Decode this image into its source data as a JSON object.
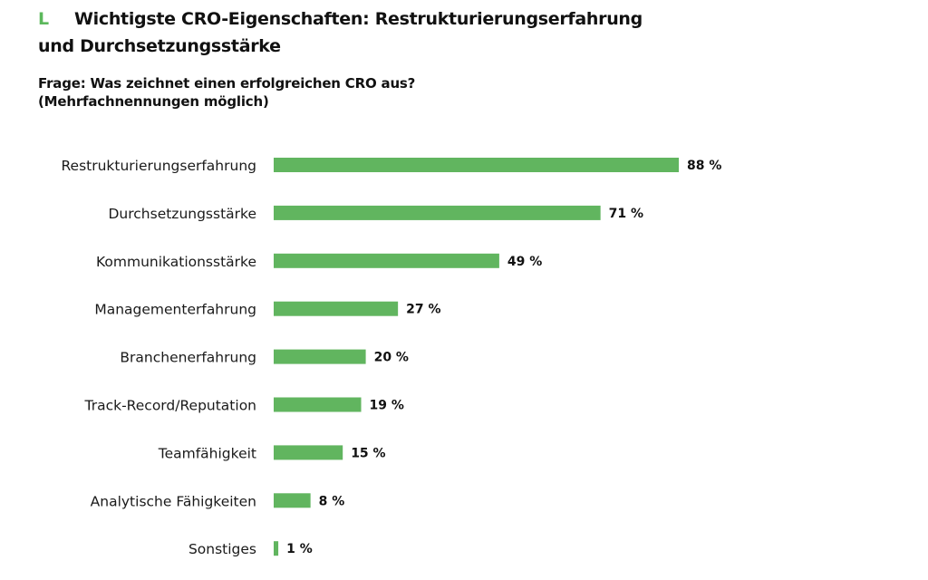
{
  "header": {
    "marker": "L",
    "title_line1": "Wichtigste CRO-Eigenschaften: Restrukturierungserfahrung",
    "title_line2": "und Durchsetzungsstärke",
    "question_line1": "Frage: Was zeichnet einen erfolgreichen CRO aus?",
    "question_line2": "(Mehrfachnennungen möglich)"
  },
  "colors": {
    "accent": "#5cb85c",
    "bar": "#61b55f",
    "text": "#111111"
  },
  "chart_data": {
    "type": "bar",
    "orientation": "horizontal",
    "title": "Wichtigste CRO-Eigenschaften: Restrukturierungserfahrung und Durchsetzungsstärke",
    "subtitle": "Frage: Was zeichnet einen erfolgreichen CRO aus? (Mehrfachnennungen möglich)",
    "xlabel": "",
    "ylabel": "",
    "unit": "%",
    "xlim": [
      0,
      100
    ],
    "grid": false,
    "legend": "none",
    "categories": [
      "Restrukturierungserfahrung",
      "Durchsetzungsstärke",
      "Kommunikationsstärke",
      "Managementerfahrung",
      "Branchenerfahrung",
      "Track-Record/Reputation",
      "Teamfähigkeit",
      "Analytische Fähigkeiten",
      "Sonstiges"
    ],
    "values": [
      88,
      71,
      49,
      27,
      20,
      19,
      15,
      8,
      1
    ],
    "value_labels": [
      "88 %",
      "71 %",
      "49 %",
      "27 %",
      "20 %",
      "19 %",
      "15 %",
      "8 %",
      "1 %"
    ]
  }
}
